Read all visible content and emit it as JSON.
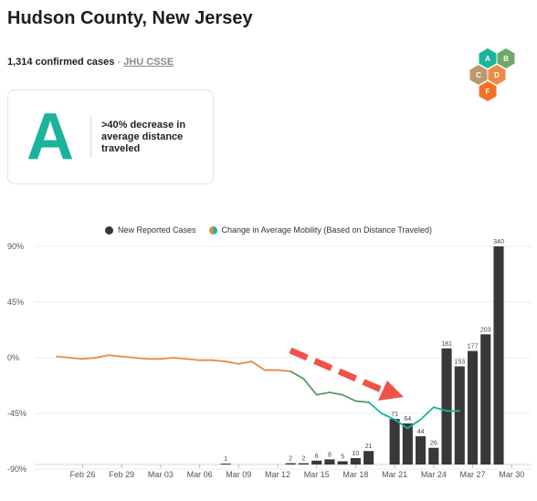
{
  "header": {
    "title": "Hudson County, New Jersey",
    "cases_text": "1,314 confirmed cases",
    "separator": " - ",
    "source_link": "JHU CSSE"
  },
  "grade_legend": {
    "grades": [
      {
        "letter": "A",
        "color": "#1ab39c"
      },
      {
        "letter": "B",
        "color": "#6fa86a"
      },
      {
        "letter": "C",
        "color": "#bb9a6a"
      },
      {
        "letter": "D",
        "color": "#ee8a44"
      },
      {
        "letter": "F",
        "color": "#f27224"
      }
    ]
  },
  "grade_card": {
    "grade": "A",
    "description": ">40% decrease in average distance traveled"
  },
  "chart_data": {
    "type": "bar",
    "legend": [
      {
        "label": "New Reported Cases",
        "color": "#383838"
      },
      {
        "label": "Change in Average Mobility (Based on Distance Traveled)",
        "color": "#1ab39c"
      }
    ],
    "x_ticks": [
      "Feb 26",
      "Feb 29",
      "Mar 03",
      "Mar 06",
      "Mar 09",
      "Mar 12",
      "Mar 15",
      "Mar 18",
      "Mar 21",
      "Mar 24",
      "Mar 27",
      "Mar 30"
    ],
    "y_ticks": [
      "90%",
      "45%",
      "0%",
      "-45%",
      "-90%"
    ],
    "ylim": [
      -90,
      90
    ],
    "date_range": [
      "Feb 24",
      "Mar 30"
    ],
    "cases": [
      {
        "date": "Mar 08",
        "value": 1,
        "label": "1"
      },
      {
        "date": "Mar 13",
        "value": 2,
        "label": "2"
      },
      {
        "date": "Mar 14",
        "value": 2,
        "label": "2"
      },
      {
        "date": "Mar 15",
        "value": 6,
        "label": "6"
      },
      {
        "date": "Mar 16",
        "value": 8,
        "label": "8"
      },
      {
        "date": "Mar 17",
        "value": 5,
        "label": "5"
      },
      {
        "date": "Mar 18",
        "value": 10,
        "label": "10"
      },
      {
        "date": "Mar 19",
        "value": 21,
        "label": "21"
      },
      {
        "date": "Mar 21",
        "value": 71,
        "label": "71"
      },
      {
        "date": "Mar 22",
        "value": 64,
        "label": "64"
      },
      {
        "date": "Mar 23",
        "value": 44,
        "label": "44"
      },
      {
        "date": "Mar 24",
        "value": 26,
        "label": "26"
      },
      {
        "date": "Mar 25",
        "value": 181,
        "label": "181"
      },
      {
        "date": "Mar 26",
        "value": 153,
        "label": "153"
      },
      {
        "date": "Mar 27",
        "value": 177,
        "label": "177"
      },
      {
        "date": "Mar 28",
        "value": 203,
        "label": "203"
      },
      {
        "date": "Mar 29",
        "value": 340,
        "label": "340"
      }
    ],
    "cases_max": 340,
    "mobility": [
      {
        "date": "Feb 24",
        "value": 1
      },
      {
        "date": "Feb 25",
        "value": 0
      },
      {
        "date": "Feb 26",
        "value": -1
      },
      {
        "date": "Feb 27",
        "value": 0
      },
      {
        "date": "Feb 28",
        "value": 2
      },
      {
        "date": "Feb 29",
        "value": 1
      },
      {
        "date": "Mar 01",
        "value": 0
      },
      {
        "date": "Mar 02",
        "value": -1
      },
      {
        "date": "Mar 03",
        "value": -1
      },
      {
        "date": "Mar 04",
        "value": 0
      },
      {
        "date": "Mar 05",
        "value": -1
      },
      {
        "date": "Mar 06",
        "value": -2
      },
      {
        "date": "Mar 07",
        "value": -2
      },
      {
        "date": "Mar 08",
        "value": -3
      },
      {
        "date": "Mar 09",
        "value": -5
      },
      {
        "date": "Mar 10",
        "value": -3
      },
      {
        "date": "Mar 11",
        "value": -10
      },
      {
        "date": "Mar 12",
        "value": -10
      },
      {
        "date": "Mar 13",
        "value": -11
      },
      {
        "date": "Mar 14",
        "value": -17
      },
      {
        "date": "Mar 15",
        "value": -30
      },
      {
        "date": "Mar 16",
        "value": -28
      },
      {
        "date": "Mar 17",
        "value": -30
      },
      {
        "date": "Mar 18",
        "value": -35
      },
      {
        "date": "Mar 19",
        "value": -36
      },
      {
        "date": "Mar 20",
        "value": -45
      },
      {
        "date": "Mar 21",
        "value": -50
      },
      {
        "date": "Mar 22",
        "value": -57
      },
      {
        "date": "Mar 23",
        "value": -50
      },
      {
        "date": "Mar 24",
        "value": -40
      },
      {
        "date": "Mar 25",
        "value": -43
      },
      {
        "date": "Mar 26",
        "value": -43
      }
    ],
    "mobility_colors": {
      "normal": "#e68a45",
      "decline": "#5a9a6a",
      "strong_decline": "#1ab39c"
    },
    "arrow_color": "#f05248",
    "grid": true
  }
}
